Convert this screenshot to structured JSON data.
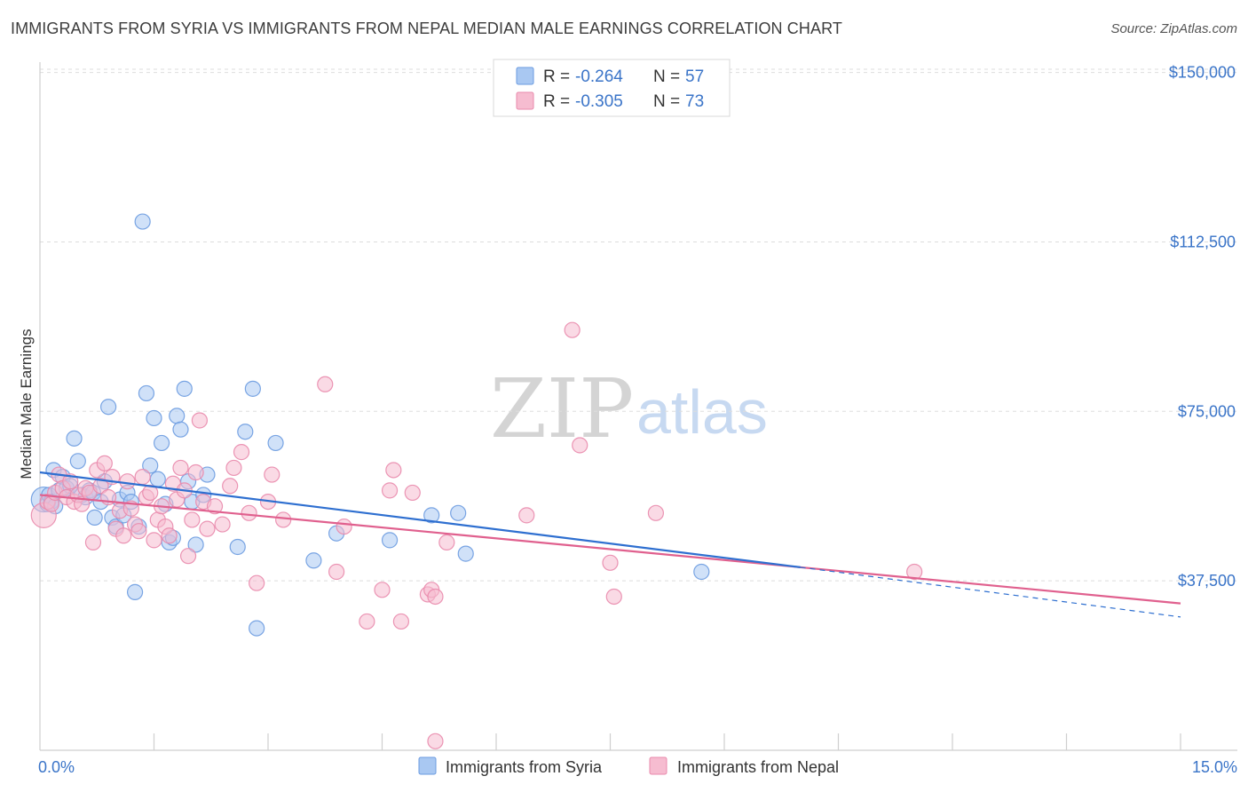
{
  "header": {
    "title": "IMMIGRANTS FROM SYRIA VS IMMIGRANTS FROM NEPAL MEDIAN MALE EARNINGS CORRELATION CHART",
    "source": "Source: ZipAtlas.com"
  },
  "watermark": {
    "zip": "ZIP",
    "atlas": "atlas"
  },
  "legend": {
    "r_label": "R =",
    "n_label": "N =",
    "syria": {
      "r": "-0.264",
      "n": "57"
    },
    "nepal": {
      "r": "-0.305",
      "n": "73"
    }
  },
  "colors": {
    "syria_fill": "#a9c8f2",
    "syria_stroke": "#6b9be0",
    "syria_line": "#2e6fd0",
    "nepal_fill": "#f6bcd0",
    "nepal_stroke": "#e98aac",
    "nepal_line": "#e0608e",
    "axis_text": "#3a74c8",
    "grid": "#dddddd"
  },
  "chart_data": {
    "type": "scatter",
    "title": "IMMIGRANTS FROM SYRIA VS IMMIGRANTS FROM NEPAL MEDIAN MALE EARNINGS CORRELATION CHART",
    "xlabel": "",
    "ylabel": "Median Male Earnings",
    "xlim": [
      0,
      15
    ],
    "ylim": [
      0,
      157000
    ],
    "x_tick_labels": [
      "0.0%",
      "15.0%"
    ],
    "y_ticks": [
      37500,
      75000,
      112500,
      150000
    ],
    "y_tick_labels": [
      "$37,500",
      "$75,000",
      "$112,500",
      "$150,000"
    ],
    "grid": true,
    "legend_position": "top-center",
    "series": [
      {
        "name": "Immigrants from Syria",
        "color": "#6b9be0",
        "r": -0.264,
        "n": 57,
        "trend": {
          "x": [
            0.0,
            10.0
          ],
          "y": [
            61500,
            40500
          ],
          "dashed_extension": {
            "x": [
              10.0,
              15.0
            ],
            "y": [
              40500,
              29500
            ]
          }
        },
        "points": [
          {
            "x": 0.05,
            "y": 55500
          },
          {
            "x": 0.1,
            "y": 54500
          },
          {
            "x": 0.12,
            "y": 56500
          },
          {
            "x": 0.15,
            "y": 55000
          },
          {
            "x": 0.18,
            "y": 62000
          },
          {
            "x": 0.2,
            "y": 54000
          },
          {
            "x": 0.25,
            "y": 57500
          },
          {
            "x": 0.3,
            "y": 60500
          },
          {
            "x": 0.35,
            "y": 58000
          },
          {
            "x": 0.4,
            "y": 58500
          },
          {
            "x": 0.45,
            "y": 69000
          },
          {
            "x": 0.5,
            "y": 64000
          },
          {
            "x": 0.55,
            "y": 56500
          },
          {
            "x": 0.6,
            "y": 56000
          },
          {
            "x": 0.65,
            "y": 57500
          },
          {
            "x": 0.7,
            "y": 57000
          },
          {
            "x": 0.72,
            "y": 51500
          },
          {
            "x": 0.8,
            "y": 55000
          },
          {
            "x": 0.85,
            "y": 59500
          },
          {
            "x": 0.9,
            "y": 76000
          },
          {
            "x": 0.95,
            "y": 51500
          },
          {
            "x": 1.0,
            "y": 49500
          },
          {
            "x": 1.05,
            "y": 55500
          },
          {
            "x": 1.1,
            "y": 52000
          },
          {
            "x": 1.15,
            "y": 57000
          },
          {
            "x": 1.2,
            "y": 55000
          },
          {
            "x": 1.25,
            "y": 35000
          },
          {
            "x": 1.3,
            "y": 49500
          },
          {
            "x": 1.35,
            "y": 117000
          },
          {
            "x": 1.4,
            "y": 79000
          },
          {
            "x": 1.45,
            "y": 63000
          },
          {
            "x": 1.5,
            "y": 73500
          },
          {
            "x": 1.55,
            "y": 60000
          },
          {
            "x": 1.6,
            "y": 68000
          },
          {
            "x": 1.65,
            "y": 54500
          },
          {
            "x": 1.7,
            "y": 46000
          },
          {
            "x": 1.75,
            "y": 47000
          },
          {
            "x": 1.8,
            "y": 74000
          },
          {
            "x": 1.85,
            "y": 71000
          },
          {
            "x": 1.9,
            "y": 80000
          },
          {
            "x": 1.95,
            "y": 59500
          },
          {
            "x": 2.0,
            "y": 55000
          },
          {
            "x": 2.05,
            "y": 45500
          },
          {
            "x": 2.15,
            "y": 56500
          },
          {
            "x": 2.2,
            "y": 61000
          },
          {
            "x": 2.6,
            "y": 45000
          },
          {
            "x": 2.7,
            "y": 70500
          },
          {
            "x": 2.8,
            "y": 80000
          },
          {
            "x": 2.85,
            "y": 27000
          },
          {
            "x": 3.1,
            "y": 68000
          },
          {
            "x": 3.6,
            "y": 42000
          },
          {
            "x": 3.9,
            "y": 48000
          },
          {
            "x": 4.6,
            "y": 46500
          },
          {
            "x": 5.5,
            "y": 52500
          },
          {
            "x": 5.6,
            "y": 43500
          },
          {
            "x": 5.15,
            "y": 52000
          },
          {
            "x": 8.7,
            "y": 39500
          }
        ]
      },
      {
        "name": "Immigrants from Nepal",
        "color": "#e98aac",
        "r": -0.305,
        "n": 73,
        "trend": {
          "x": [
            0.0,
            15.0
          ],
          "y": [
            56500,
            32500
          ]
        },
        "points": [
          {
            "x": 0.05,
            "y": 52000
          },
          {
            "x": 0.1,
            "y": 55000
          },
          {
            "x": 0.15,
            "y": 54500
          },
          {
            "x": 0.2,
            "y": 57000
          },
          {
            "x": 0.25,
            "y": 61000
          },
          {
            "x": 0.3,
            "y": 58000
          },
          {
            "x": 0.35,
            "y": 56000
          },
          {
            "x": 0.4,
            "y": 59500
          },
          {
            "x": 0.45,
            "y": 55000
          },
          {
            "x": 0.5,
            "y": 56500
          },
          {
            "x": 0.55,
            "y": 54500
          },
          {
            "x": 0.6,
            "y": 58000
          },
          {
            "x": 0.65,
            "y": 57000
          },
          {
            "x": 0.7,
            "y": 46000
          },
          {
            "x": 0.75,
            "y": 62000
          },
          {
            "x": 0.8,
            "y": 58500
          },
          {
            "x": 0.85,
            "y": 63500
          },
          {
            "x": 0.9,
            "y": 56000
          },
          {
            "x": 0.95,
            "y": 60500
          },
          {
            "x": 1.0,
            "y": 49000
          },
          {
            "x": 1.05,
            "y": 53000
          },
          {
            "x": 1.1,
            "y": 47500
          },
          {
            "x": 1.15,
            "y": 59500
          },
          {
            "x": 1.2,
            "y": 53500
          },
          {
            "x": 1.25,
            "y": 50000
          },
          {
            "x": 1.3,
            "y": 48500
          },
          {
            "x": 1.35,
            "y": 60500
          },
          {
            "x": 1.4,
            "y": 56000
          },
          {
            "x": 1.45,
            "y": 57000
          },
          {
            "x": 1.5,
            "y": 46500
          },
          {
            "x": 1.55,
            "y": 51000
          },
          {
            "x": 1.6,
            "y": 54000
          },
          {
            "x": 1.65,
            "y": 49500
          },
          {
            "x": 1.7,
            "y": 47500
          },
          {
            "x": 1.75,
            "y": 59000
          },
          {
            "x": 1.8,
            "y": 55500
          },
          {
            "x": 1.85,
            "y": 62500
          },
          {
            "x": 1.9,
            "y": 57500
          },
          {
            "x": 1.95,
            "y": 43000
          },
          {
            "x": 2.0,
            "y": 51000
          },
          {
            "x": 2.05,
            "y": 61500
          },
          {
            "x": 2.1,
            "y": 73000
          },
          {
            "x": 2.15,
            "y": 55000
          },
          {
            "x": 2.2,
            "y": 49000
          },
          {
            "x": 2.3,
            "y": 54000
          },
          {
            "x": 2.4,
            "y": 50000
          },
          {
            "x": 2.5,
            "y": 58500
          },
          {
            "x": 2.55,
            "y": 62500
          },
          {
            "x": 2.65,
            "y": 66000
          },
          {
            "x": 2.75,
            "y": 52500
          },
          {
            "x": 2.85,
            "y": 37000
          },
          {
            "x": 3.0,
            "y": 55000
          },
          {
            "x": 3.05,
            "y": 61000
          },
          {
            "x": 3.2,
            "y": 51000
          },
          {
            "x": 3.75,
            "y": 81000
          },
          {
            "x": 3.9,
            "y": 39500
          },
          {
            "x": 4.0,
            "y": 49500
          },
          {
            "x": 4.3,
            "y": 28500
          },
          {
            "x": 4.5,
            "y": 35500
          },
          {
            "x": 4.6,
            "y": 57500
          },
          {
            "x": 4.65,
            "y": 62000
          },
          {
            "x": 4.75,
            "y": 28500
          },
          {
            "x": 4.9,
            "y": 57000
          },
          {
            "x": 5.1,
            "y": 34500
          },
          {
            "x": 5.15,
            "y": 35500
          },
          {
            "x": 5.2,
            "y": 34000
          },
          {
            "x": 5.35,
            "y": 46000
          },
          {
            "x": 6.4,
            "y": 52000
          },
          {
            "x": 7.0,
            "y": 93000
          },
          {
            "x": 7.1,
            "y": 67500
          },
          {
            "x": 7.5,
            "y": 41500
          },
          {
            "x": 7.55,
            "y": 34000
          },
          {
            "x": 8.1,
            "y": 52500
          },
          {
            "x": 11.5,
            "y": 39500
          },
          {
            "x": 5.2,
            "y": 2000
          }
        ]
      }
    ]
  }
}
